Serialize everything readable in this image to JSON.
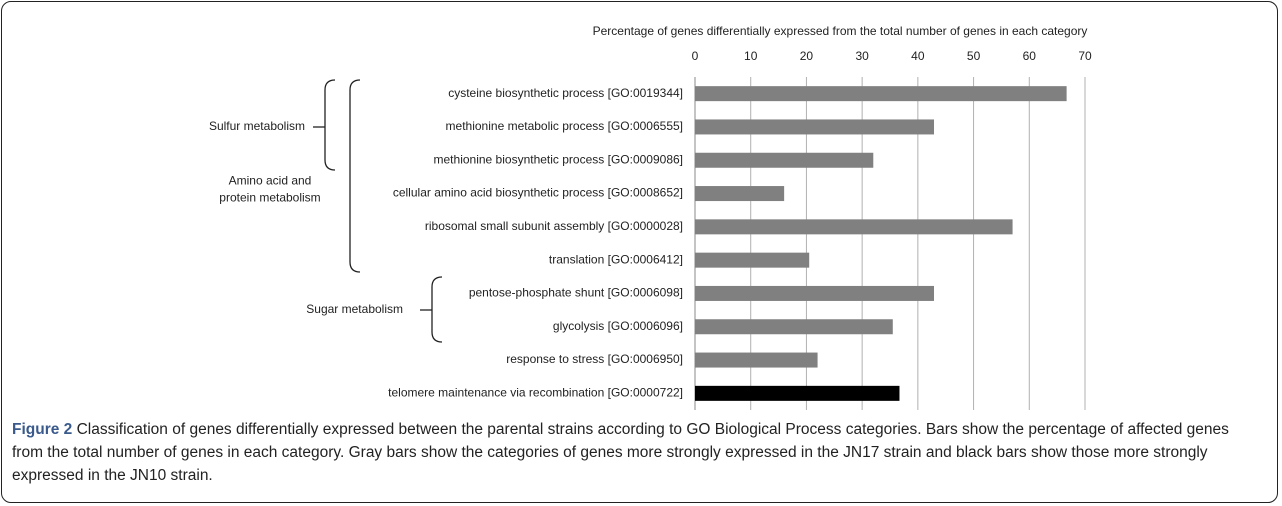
{
  "chart_data": {
    "type": "hbar",
    "xlabel": "Percentage of genes differentially expressed from the total number of genes in each category",
    "categories": [
      "cysteine biosynthetic process [GO:0019344]",
      "methionine metabolic process [GO:0006555]",
      "methionine biosynthetic process [GO:0009086]",
      "cellular amino acid biosynthetic process [GO:0008652]",
      "ribosomal small subunit assembly [GO:0000028]",
      "translation [GO:0006412]",
      "pentose-phosphate shunt [GO:0006098]",
      "glycolysis [GO:0006096]",
      "response to stress [GO:0006950]",
      "telomere maintenance via recombination [GO:0000722]"
    ],
    "values": [
      66.7,
      42.9,
      32,
      16,
      57,
      20.5,
      42.9,
      35.5,
      22,
      36.7
    ],
    "colors": [
      "#808080",
      "#808080",
      "#808080",
      "#808080",
      "#808080",
      "#808080",
      "#808080",
      "#808080",
      "#808080",
      "#000000"
    ],
    "xlim": [
      0,
      70
    ],
    "xticks": [
      0,
      10,
      20,
      30,
      40,
      50,
      60,
      70
    ],
    "grid": true,
    "groups": [
      {
        "label": [
          "Sulfur metabolism"
        ]
      },
      {
        "label": [
          "Amino acid and",
          "protein metabolism"
        ]
      },
      {
        "label": [
          "Sugar metabolism"
        ]
      }
    ]
  },
  "caption": {
    "label": "Figure 2",
    "text": " Classification of genes differentially expressed between the parental strains according to GO Biological Process categories. Bars show the percentage of affected genes from the total number of genes in each category. Gray bars show the categories of genes more strongly expressed in the JN17 strain and black bars show those more strongly expressed in the JN10 strain."
  }
}
